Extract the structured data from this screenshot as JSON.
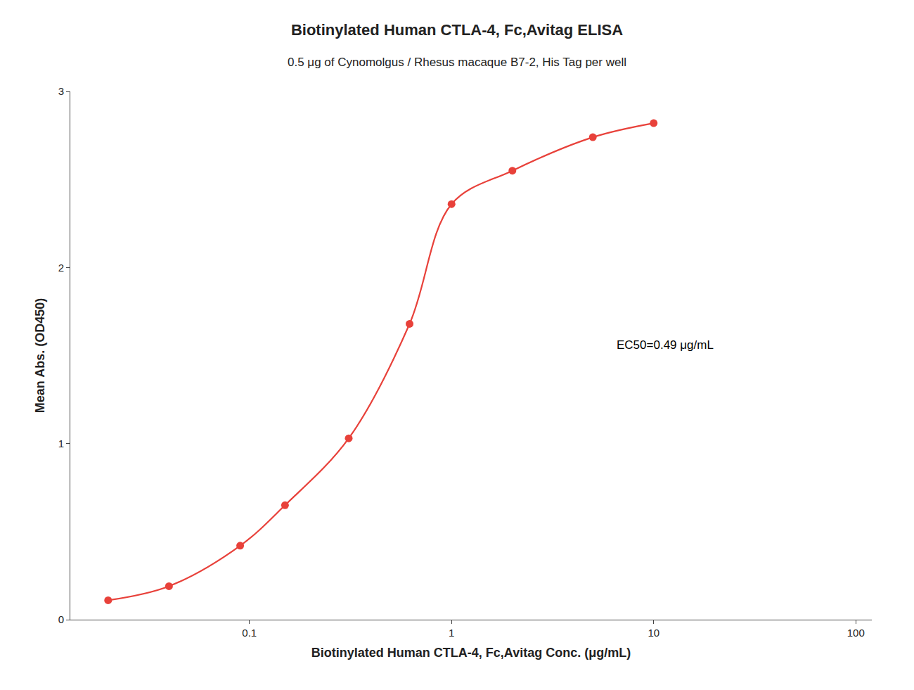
{
  "chart_data": {
    "type": "scatter",
    "title": "Biotinylated Human CTLA-4, Fc,Avitag ELISA",
    "subtitle": "0.5 μg of Cynomolgus / Rhesus macaque B7-2, His Tag per well",
    "xlabel": "Biotinylated Human CTLA-4, Fc,Avitag Conc. (μg/mL)",
    "ylabel": "Mean Abs. (OD450)",
    "annotation": "EC50=0.49 μg/mL",
    "x": [
      0.02,
      0.04,
      0.09,
      0.15,
      0.31,
      0.62,
      1.0,
      2.0,
      5.0,
      10.0
    ],
    "values": [
      0.11,
      0.19,
      0.42,
      0.65,
      1.03,
      1.68,
      2.36,
      2.55,
      2.74,
      2.82
    ],
    "color": "#e8413a",
    "marker": "circle",
    "line_style": "solid",
    "log": "x",
    "xlim": [
      0.013,
      120
    ],
    "xticks": [
      0.1,
      1,
      10,
      100
    ],
    "ylim": [
      0,
      3.0
    ],
    "yticks": [
      0,
      1,
      2,
      3
    ],
    "grid": false
  }
}
